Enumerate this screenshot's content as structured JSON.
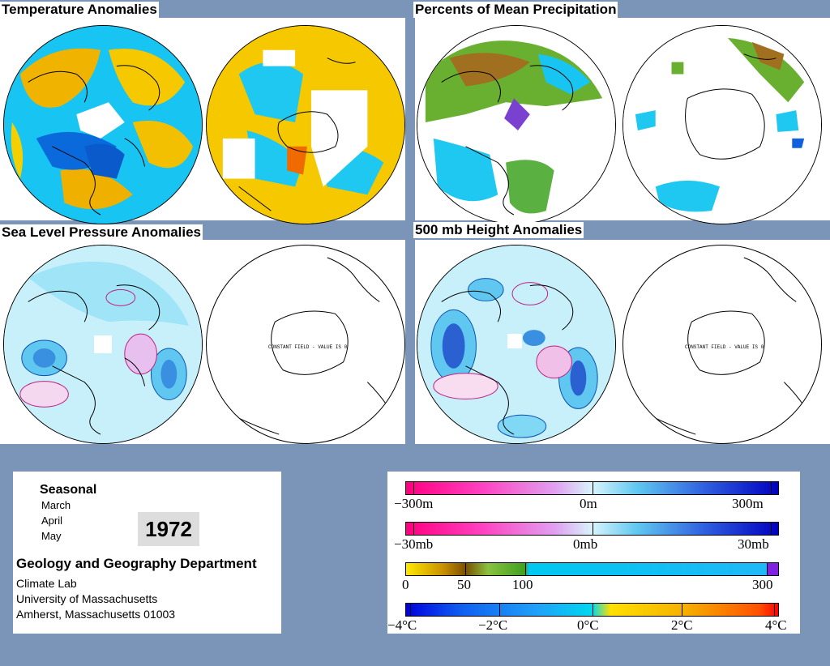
{
  "panels": {
    "temperature": {
      "title": "Temperature Anomalies"
    },
    "precipitation": {
      "title": "Percents of Mean Precipitation"
    },
    "slp": {
      "title": "Sea Level Pressure Anomalies",
      "constant_field_text": "CONSTANT FIELD - VALUE IS 0"
    },
    "height500": {
      "title": "500 mb Height Anomalies",
      "constant_field_text": "CONSTANT FIELD - VALUE IS 0"
    }
  },
  "info": {
    "seasonal": "Seasonal",
    "months": [
      "March",
      "April",
      "May"
    ],
    "year": "1972",
    "department": "Geology and Geography Department",
    "lines": [
      "Climate Lab",
      "University of Massachusetts",
      "Amherst, Massachusetts 01003"
    ]
  },
  "legend": {
    "height_bar": {
      "labels": [
        "−300m",
        "0m",
        "300m"
      ],
      "values": [
        -300,
        0,
        300
      ]
    },
    "pressure_bar": {
      "labels": [
        "−30mb",
        "0mb",
        "30mb"
      ],
      "values": [
        -30,
        0,
        30
      ]
    },
    "precip_bar": {
      "labels": [
        "0",
        "50",
        "100",
        "300"
      ],
      "values": [
        0,
        50,
        100,
        300
      ]
    },
    "temp_bar": {
      "labels": [
        "−4°C",
        "−2°C",
        "0°C",
        "2°C",
        "4°C"
      ],
      "values": [
        -4,
        -2,
        0,
        2,
        4
      ]
    }
  },
  "colors": {
    "background": "#7b95b8",
    "temp_warm": "#f5c400",
    "temp_cold": "#00c8f0",
    "anomaly_positive": "#e0e0ff",
    "anomaly_negative": "#ffb0e0"
  }
}
